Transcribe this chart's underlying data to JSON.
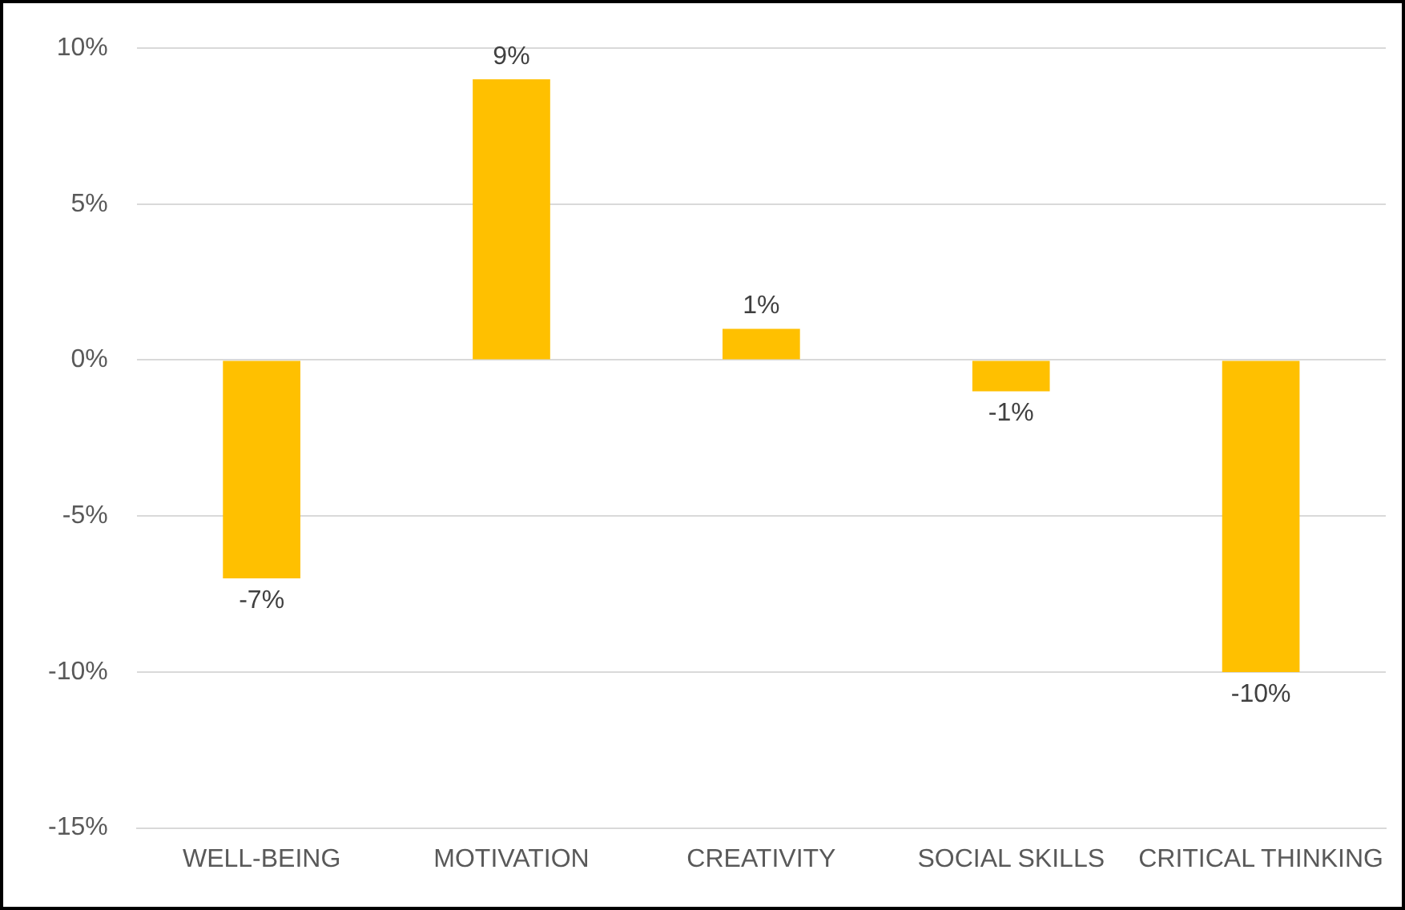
{
  "chart_data": {
    "type": "bar",
    "categories": [
      "WELL-BEING",
      "MOTIVATION",
      "CREATIVITY",
      "SOCIAL SKILLS",
      "CRITICAL THINKING"
    ],
    "values": [
      -7,
      9,
      1,
      -1,
      -10
    ],
    "value_labels": [
      "-7%",
      "9%",
      "1%",
      "-1%",
      "-10%"
    ],
    "color": "#ffc000",
    "ylim": [
      -15,
      10
    ],
    "yticks": [
      {
        "value": -15,
        "label": "-15%"
      },
      {
        "value": -10,
        "label": "-10%"
      },
      {
        "value": -5,
        "label": "-5%"
      },
      {
        "value": 0,
        "label": "0%"
      },
      {
        "value": 5,
        "label": "5%"
      },
      {
        "value": 10,
        "label": "10%"
      }
    ],
    "grid": "y",
    "legend": false
  }
}
